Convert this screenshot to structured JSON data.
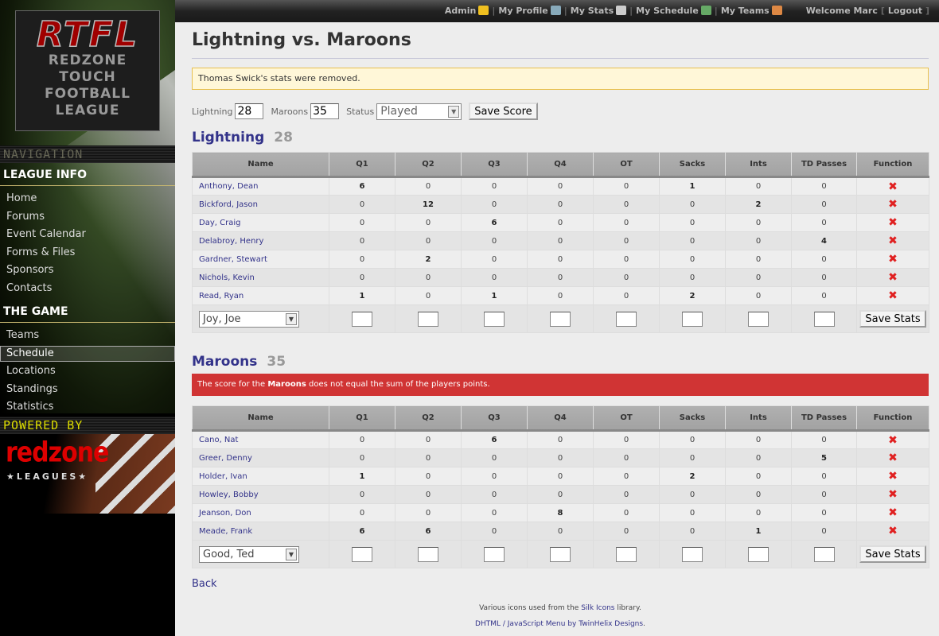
{
  "topbar": {
    "links": [
      {
        "label": "Admin",
        "icon": "star-icon",
        "color": "#f0c020"
      },
      {
        "label": "My Profile",
        "icon": "id-card-icon",
        "color": "#8ab"
      },
      {
        "label": "My Stats",
        "icon": "calculator-icon",
        "color": "#ccc"
      },
      {
        "label": "My Schedule",
        "icon": "calendar-icon",
        "color": "#6a6"
      },
      {
        "label": "My Teams",
        "icon": "users-icon",
        "color": "#d84"
      }
    ],
    "welcome": "Welcome Marc",
    "logout": "Logout"
  },
  "sidebar": {
    "logo": {
      "abbr": "RTFL",
      "lines": [
        "REDZONE",
        "TOUCH",
        "FOOTBALL",
        "LEAGUE"
      ]
    },
    "navigation_label": "NAVIGATION",
    "sections": [
      {
        "title": "LEAGUE INFO",
        "items": [
          "Home",
          "Forums",
          "Event Calendar",
          "Forms & Files",
          "Sponsors",
          "Contacts"
        ]
      },
      {
        "title": "THE GAME",
        "items": [
          "Teams",
          "Schedule",
          "Locations",
          "Standings",
          "Statistics"
        ]
      }
    ],
    "active_item": "Schedule",
    "powered_label": "POWERED BY",
    "sponsor": {
      "name": "redzone",
      "sub": "★LEAGUES★"
    }
  },
  "page": {
    "title": "Lightning vs. Maroons",
    "notice": "Thomas Swick's stats were removed.",
    "score_form": {
      "home_label": "Lightning",
      "home_score": "28",
      "away_label": "Maroons",
      "away_score": "35",
      "status_label": "Status",
      "status_value": "Played",
      "save_label": "Save Score"
    },
    "columns": [
      "Name",
      "Q1",
      "Q2",
      "Q3",
      "Q4",
      "OT",
      "Sacks",
      "Ints",
      "TD Passes",
      "Function"
    ],
    "teams": [
      {
        "name": "Lightning",
        "score": "28",
        "error": null,
        "add_player": "Joy, Joe",
        "save_label": "Save Stats",
        "players": [
          {
            "name": "Anthony, Dean",
            "stats": [
              6,
              0,
              0,
              0,
              0,
              1,
              0,
              0
            ]
          },
          {
            "name": "Bickford, Jason",
            "stats": [
              0,
              12,
              0,
              0,
              0,
              0,
              2,
              0
            ]
          },
          {
            "name": "Day, Craig",
            "stats": [
              0,
              0,
              6,
              0,
              0,
              0,
              0,
              0
            ]
          },
          {
            "name": "Delabroy, Henry",
            "stats": [
              0,
              0,
              0,
              0,
              0,
              0,
              0,
              4
            ]
          },
          {
            "name": "Gardner, Stewart",
            "stats": [
              0,
              2,
              0,
              0,
              0,
              0,
              0,
              0
            ]
          },
          {
            "name": "Nichols, Kevin",
            "stats": [
              0,
              0,
              0,
              0,
              0,
              0,
              0,
              0
            ]
          },
          {
            "name": "Read, Ryan",
            "stats": [
              1,
              0,
              1,
              0,
              0,
              2,
              0,
              0
            ]
          }
        ]
      },
      {
        "name": "Maroons",
        "score": "35",
        "error": {
          "pre": "The score for the ",
          "team": "Maroons",
          "post": " does not equal the sum of the players points."
        },
        "add_player": "Good, Ted",
        "save_label": "Save Stats",
        "players": [
          {
            "name": "Cano, Nat",
            "stats": [
              0,
              0,
              6,
              0,
              0,
              0,
              0,
              0
            ]
          },
          {
            "name": "Greer, Denny",
            "stats": [
              0,
              0,
              0,
              0,
              0,
              0,
              0,
              5
            ]
          },
          {
            "name": "Holder, Ivan",
            "stats": [
              1,
              0,
              0,
              0,
              0,
              2,
              0,
              0
            ]
          },
          {
            "name": "Howley, Bobby",
            "stats": [
              0,
              0,
              0,
              0,
              0,
              0,
              0,
              0
            ]
          },
          {
            "name": "Jeanson, Don",
            "stats": [
              0,
              0,
              0,
              8,
              0,
              0,
              0,
              0
            ]
          },
          {
            "name": "Meade, Frank",
            "stats": [
              6,
              6,
              0,
              0,
              0,
              0,
              1,
              0
            ]
          }
        ]
      }
    ],
    "back": "Back",
    "footer": {
      "line1_pre": "Various icons used from the ",
      "line1_link": "Silk Icons",
      "line1_post": " library.",
      "line2_link": "DHTML / JavaScript Menu by TwinHelix Designs",
      "line2_post": "."
    }
  }
}
